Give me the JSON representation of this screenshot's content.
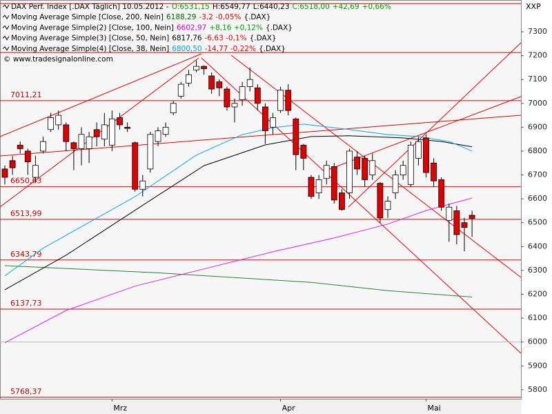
{
  "chart_data": {
    "type": "candlestick",
    "axis_label": "XXP",
    "header": [
      [
        {
          "text": "DAX Perf. Index [.DAX Täglich] 10.05.2012 -",
          "color": "#000000"
        },
        {
          "text": "O:6531,15",
          "color": "#009900"
        },
        {
          "text": "H:6549,77",
          "color": "#000000"
        },
        {
          "text": "L:6440,23",
          "color": "#000000"
        },
        {
          "text": "C:6518,00",
          "color": "#009900"
        },
        {
          "text": "+42,69",
          "color": "#009900"
        },
        {
          "text": "+0,66%",
          "color": "#009900"
        }
      ],
      [
        {
          "text": "Moving Average Simple [Close, 200, Nein]",
          "color": "#000000"
        },
        {
          "text": "6188,29",
          "color": "#006600"
        },
        {
          "text": "-3,2 -0,05%",
          "color": "#dd0000"
        },
        {
          "text": "{.DAX}",
          "color": "#000000"
        }
      ],
      [
        {
          "text": "Moving Average Simple(2) [Close, 100, Nein]",
          "color": "#000000"
        },
        {
          "text": "6602,97",
          "color": "#cc00cc"
        },
        {
          "text": "+8,16 +0,12%",
          "color": "#009900"
        },
        {
          "text": "{.DAX}",
          "color": "#000000"
        }
      ],
      [
        {
          "text": "Moving Average Simple(3) [Close, 50, Nein]",
          "color": "#000000"
        },
        {
          "text": "6817,76",
          "color": "#000000"
        },
        {
          "text": "-6,63 -0,1%",
          "color": "#dd0000"
        },
        {
          "text": "{.DAX}",
          "color": "#000000"
        }
      ],
      [
        {
          "text": "Moving Average Simple(4) [Close, 38, Nein]",
          "color": "#000000"
        },
        {
          "text": "6800,50",
          "color": "#00a0e0"
        },
        {
          "text": "-14,77 -0,22%",
          "color": "#dd0000"
        },
        {
          "text": "{.DAX}",
          "color": "#000000"
        }
      ],
      [
        {
          "text": "© www.tradesignalonline.com",
          "color": "#000000"
        }
      ]
    ],
    "categories": [
      null,
      null,
      null,
      null,
      null,
      null,
      null,
      null,
      null,
      null,
      null,
      null,
      null,
      null,
      "Mrz",
      null,
      null,
      null,
      null,
      null,
      null,
      null,
      null,
      null,
      null,
      null,
      null,
      null,
      null,
      null,
      null,
      null,
      null,
      null,
      null,
      null,
      "Apr",
      null,
      null,
      null,
      null,
      null,
      null,
      null,
      null,
      null,
      null,
      null,
      null,
      null,
      null,
      null,
      null,
      null,
      null,
      "Mai",
      null,
      null,
      null,
      null,
      null,
      null
    ],
    "open": [
      6725,
      6760,
      6825,
      6800,
      6690,
      6800,
      6890,
      6910,
      6910,
      6835,
      6810,
      6810,
      6890,
      6850,
      6825,
      6940,
      6900,
      6835,
      6640,
      6725,
      6840,
      6870,
      6960,
      7030,
      7085,
      7140,
      7155,
      7115,
      7090,
      7060,
      6985,
      7015,
      7070,
      7065,
      6985,
      6900,
      6970,
      7055,
      6935,
      6825,
      6690,
      6625,
      6685,
      6735,
      6625,
      6625,
      6775,
      6770,
      6700,
      6665,
      6555,
      6625,
      6700,
      6660,
      6770,
      6855,
      6750,
      6680,
      6510,
      6550,
      6500,
      6531.15
    ],
    "high": [
      6740,
      6780,
      6840,
      6810,
      6780,
      6860,
      6960,
      6970,
      6920,
      6840,
      6900,
      6880,
      6920,
      6960,
      6970,
      6960,
      6920,
      6840,
      6700,
      6880,
      6900,
      6920,
      7010,
      7090,
      7140,
      7180,
      7160,
      7130,
      7100,
      7070,
      7020,
      7090,
      7150,
      7080,
      7000,
      6960,
      7070,
      7080,
      6940,
      6830,
      6700,
      6700,
      6760,
      6750,
      6640,
      6810,
      6800,
      6780,
      6790,
      6670,
      6610,
      6720,
      6760,
      6840,
      6860,
      6870,
      6770,
      6690,
      6580,
      6570,
      6520,
      6549.77
    ],
    "low": [
      6660,
      6700,
      6790,
      6700,
      6670,
      6790,
      6880,
      6890,
      6800,
      6720,
      6740,
      6750,
      6820,
      6820,
      6800,
      6890,
      6880,
      6630,
      6610,
      6710,
      6820,
      6860,
      6950,
      7020,
      7070,
      7130,
      7120,
      7040,
      7030,
      6970,
      6920,
      6990,
      7050,
      6970,
      6830,
      6870,
      6960,
      6950,
      6720,
      6720,
      6600,
      6600,
      6660,
      6580,
      6550,
      6600,
      6700,
      6650,
      6680,
      6500,
      6520,
      6600,
      6680,
      6650,
      6740,
      6690,
      6650,
      6550,
      6420,
      6410,
      6380,
      6440.23
    ],
    "close": [
      6690,
      6730,
      6810,
      6755,
      6740,
      6840,
      6940,
      6950,
      6840,
      6810,
      6870,
      6860,
      6860,
      6910,
      6935,
      6910,
      6895,
      6640,
      6675,
      6870,
      6885,
      6900,
      7000,
      7080,
      7120,
      7155,
      7145,
      7060,
      7065,
      6985,
      7000,
      7070,
      7100,
      7000,
      6885,
      6940,
      7055,
      6970,
      6785,
      6770,
      6610,
      6680,
      6740,
      6595,
      6555,
      6800,
      6725,
      6680,
      6760,
      6520,
      6590,
      6700,
      6740,
      6825,
      6840,
      6710,
      6675,
      6565,
      6565,
      6450,
      6480,
      6518
    ],
    "up_color": "#ffffff",
    "down_color": "#e00000",
    "ma": [
      {
        "color": "#2e7d32",
        "x": [
          0,
          20,
          40,
          50,
          61
        ],
        "values": [
          6320,
          6290,
          6250,
          6215,
          6188.29
        ]
      },
      {
        "color": "#e020e0",
        "x": [
          0,
          8,
          17,
          26,
          35,
          43,
          50,
          55,
          61
        ],
        "values": [
          5997,
          6132,
          6234,
          6306,
          6378,
          6436,
          6494,
          6551,
          6602.97
        ]
      },
      {
        "color": "#000000",
        "x": [
          0,
          8,
          17,
          26,
          34,
          40,
          45,
          52,
          57,
          61
        ],
        "values": [
          6219,
          6364,
          6552,
          6739,
          6826,
          6861,
          6864,
          6855,
          6840,
          6817.76
        ]
      },
      {
        "color": "#00a8e8",
        "x": [
          0,
          5,
          13,
          17,
          25,
          31,
          35,
          39,
          45,
          50,
          54,
          58,
          61
        ],
        "values": [
          6277,
          6393,
          6537,
          6609,
          6783,
          6869,
          6898,
          6913,
          6890,
          6869,
          6861,
          6840,
          6800.5
        ]
      }
    ],
    "levels": [
      {
        "value": 7011.21,
        "label": "7011,21"
      },
      {
        "value": 6650.63,
        "label": "6650,63"
      },
      {
        "value": 6513.99,
        "label": "6513,99"
      },
      {
        "value": 6343.79,
        "label": "6343,79"
      },
      {
        "value": 6137.73,
        "label": "6137,73"
      },
      {
        "value": 5768.37,
        "label": "5768,37"
      }
    ],
    "unlabeled_levels": [
      7418,
      7213
    ],
    "level_color": "#e00000",
    "baseline": 6000,
    "ylim": [
      5762,
      7433
    ],
    "yticks": [
      5800,
      5900,
      6000,
      6100,
      6200,
      6300,
      6400,
      6500,
      6600,
      6700,
      6800,
      6900,
      7000,
      7100,
      7200,
      7300
    ]
  }
}
